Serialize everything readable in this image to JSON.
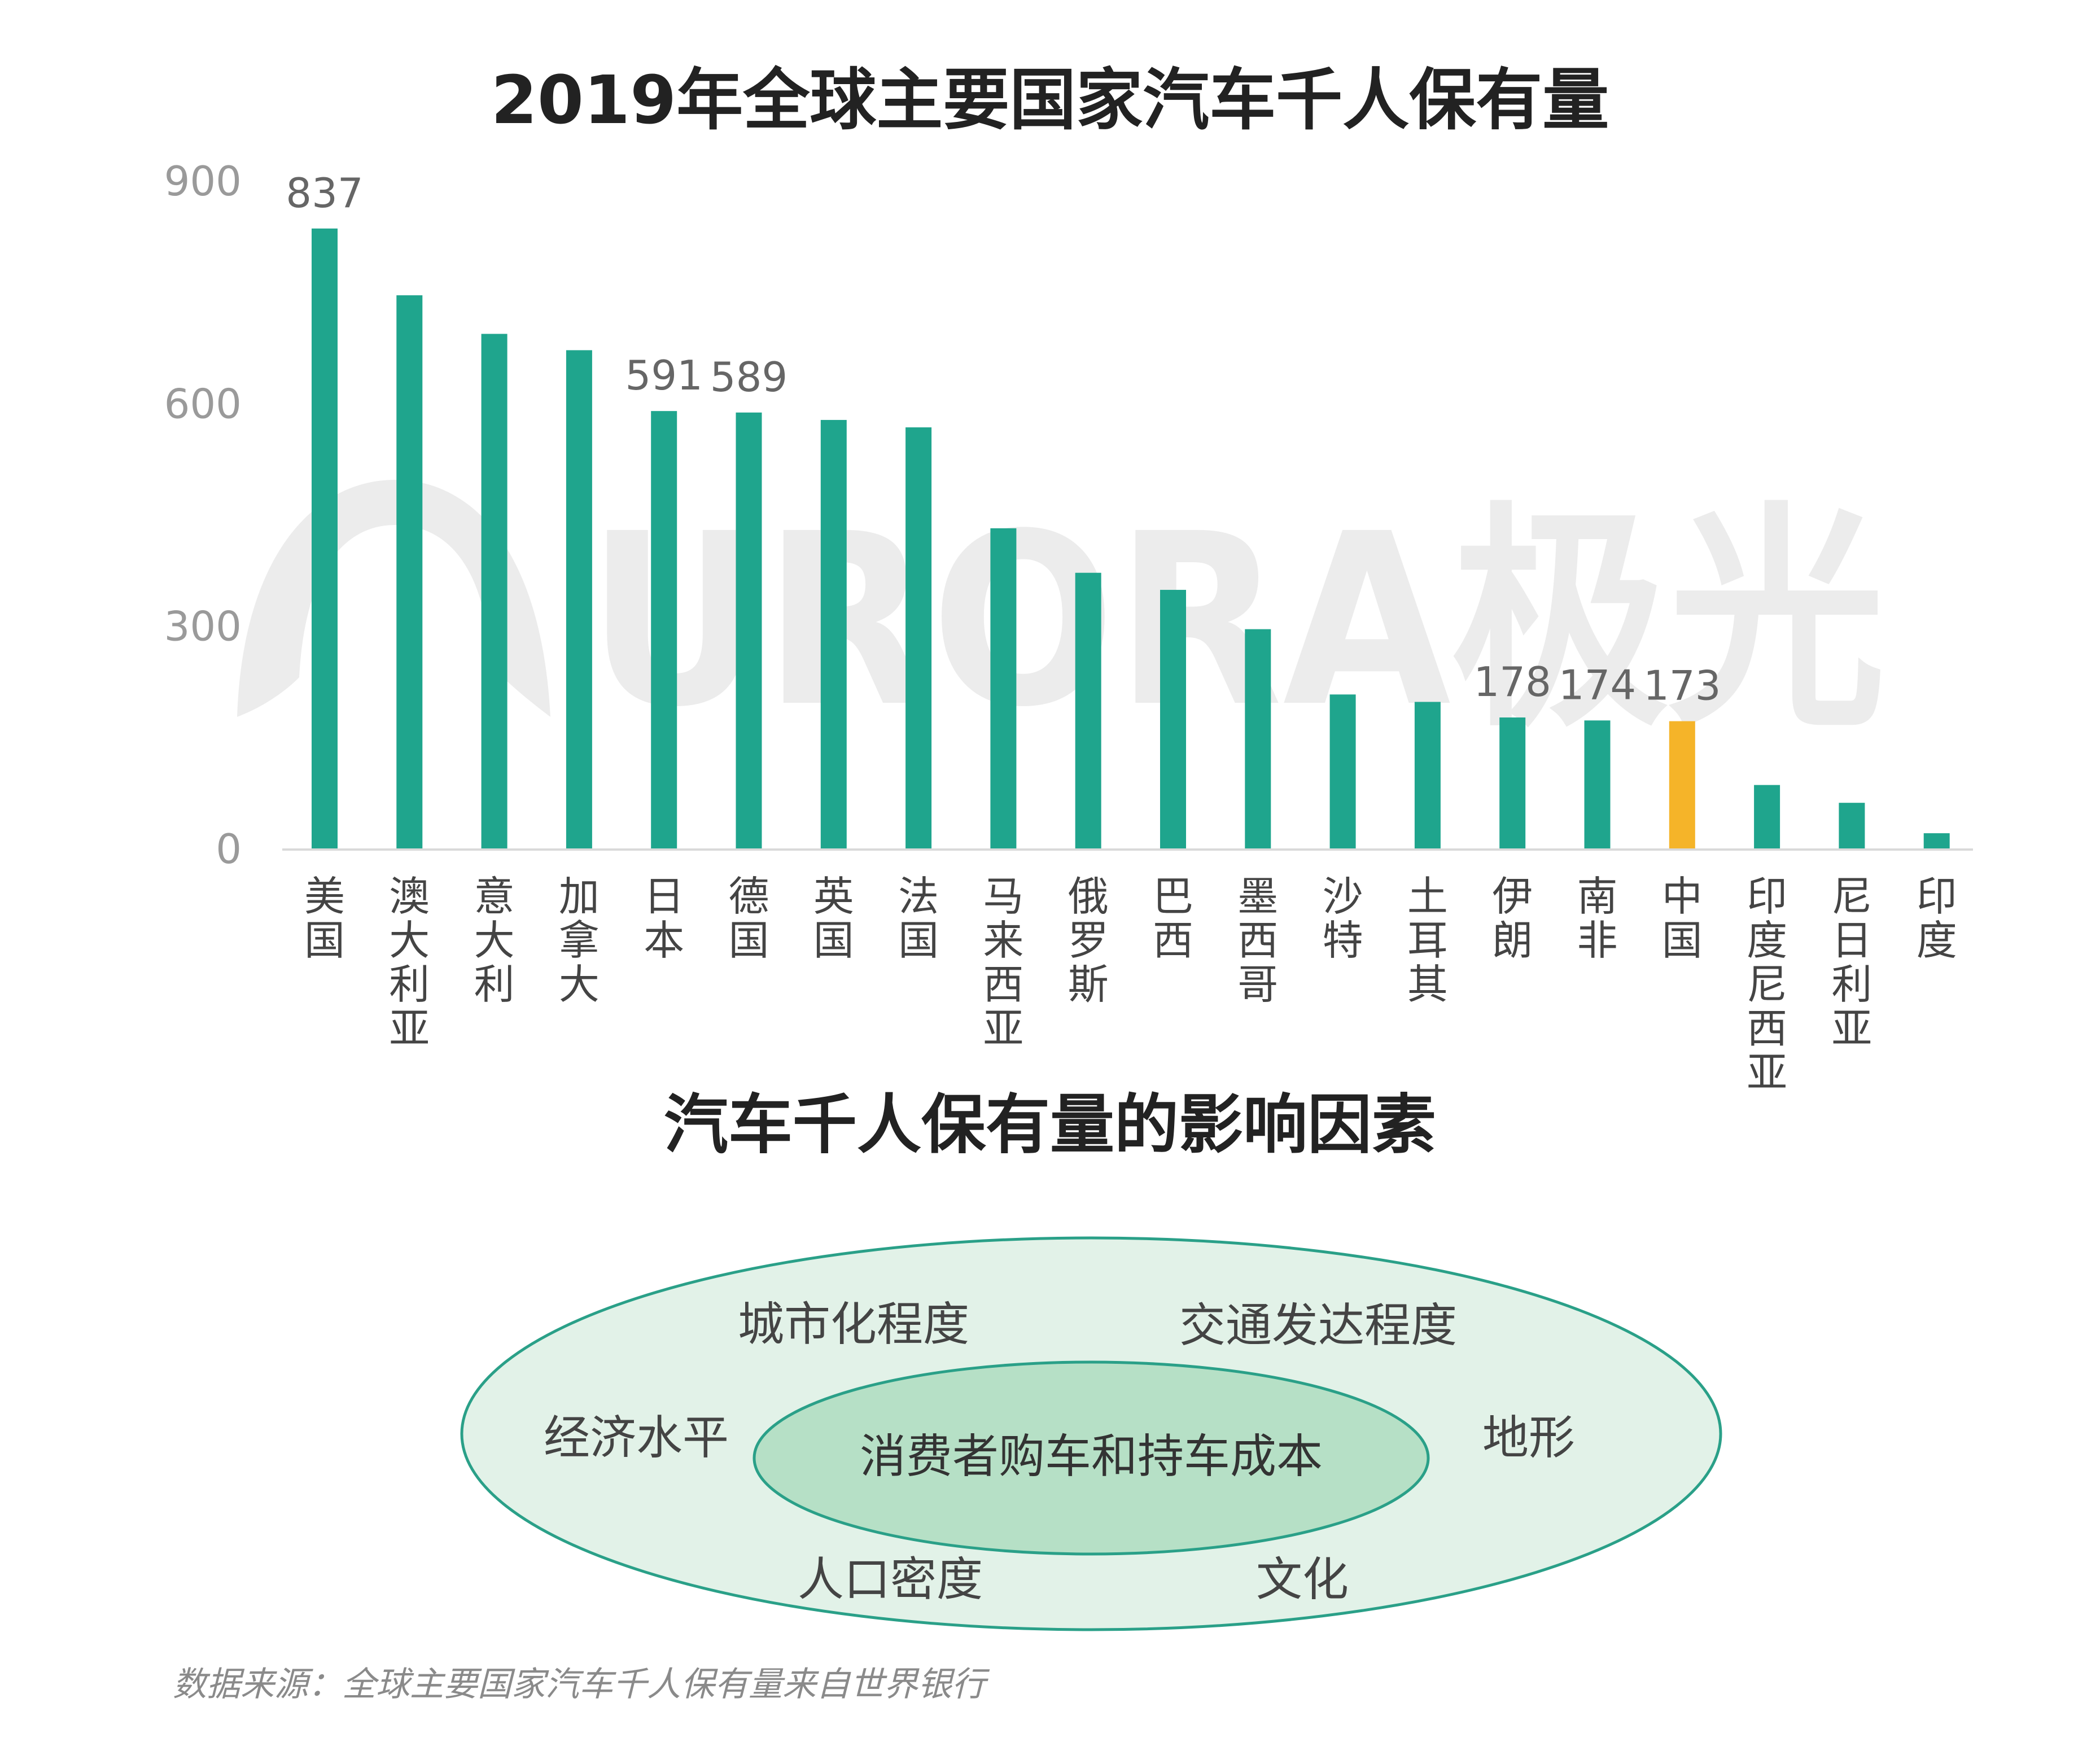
{
  "chart_data": {
    "type": "bar",
    "title": "2019年全球主要国家汽车千人保有量",
    "categories": [
      "美国",
      "澳大利亚",
      "意大利",
      "加拿大",
      "日本",
      "德国",
      "英国",
      "法国",
      "马来西亚",
      "俄罗斯",
      "巴西",
      "墨西哥",
      "沙特",
      "土耳其",
      "伊朗",
      "南非",
      "中国",
      "印度尼西亚",
      "尼日利亚",
      "印度"
    ],
    "values": [
      837,
      747,
      695,
      673,
      591,
      589,
      579,
      569,
      433,
      373,
      350,
      297,
      209,
      199,
      178,
      174,
      173,
      87,
      63,
      22
    ],
    "data_labels": {
      "0": "837",
      "4": "591",
      "5": "589",
      "14": "178",
      "15": "174",
      "16": "173"
    },
    "highlight_index": 16,
    "ylim": [
      0,
      900
    ],
    "yticks": [
      "0",
      "300",
      "600",
      "900"
    ],
    "xlabel": "",
    "ylabel": "",
    "bar_color": "#1fa58d",
    "highlight_color": "#f5b429",
    "grid": false
  },
  "watermark": {
    "text": "URORA极光",
    "color": "#e6e6e6"
  },
  "diagram": {
    "title": "汽车千人保有量的影响因素",
    "core": "消费者购车和持车成本",
    "factors": [
      "城市化程度",
      "交通发达程度",
      "经济水平",
      "地形",
      "人口密度",
      "文化"
    ],
    "outer_fill": "#e2f2e8",
    "inner_fill": "#b6e0c6",
    "stroke": "#2aa088"
  },
  "source": "数据来源：全球主要国家汽车千人保有量来自世界银行"
}
